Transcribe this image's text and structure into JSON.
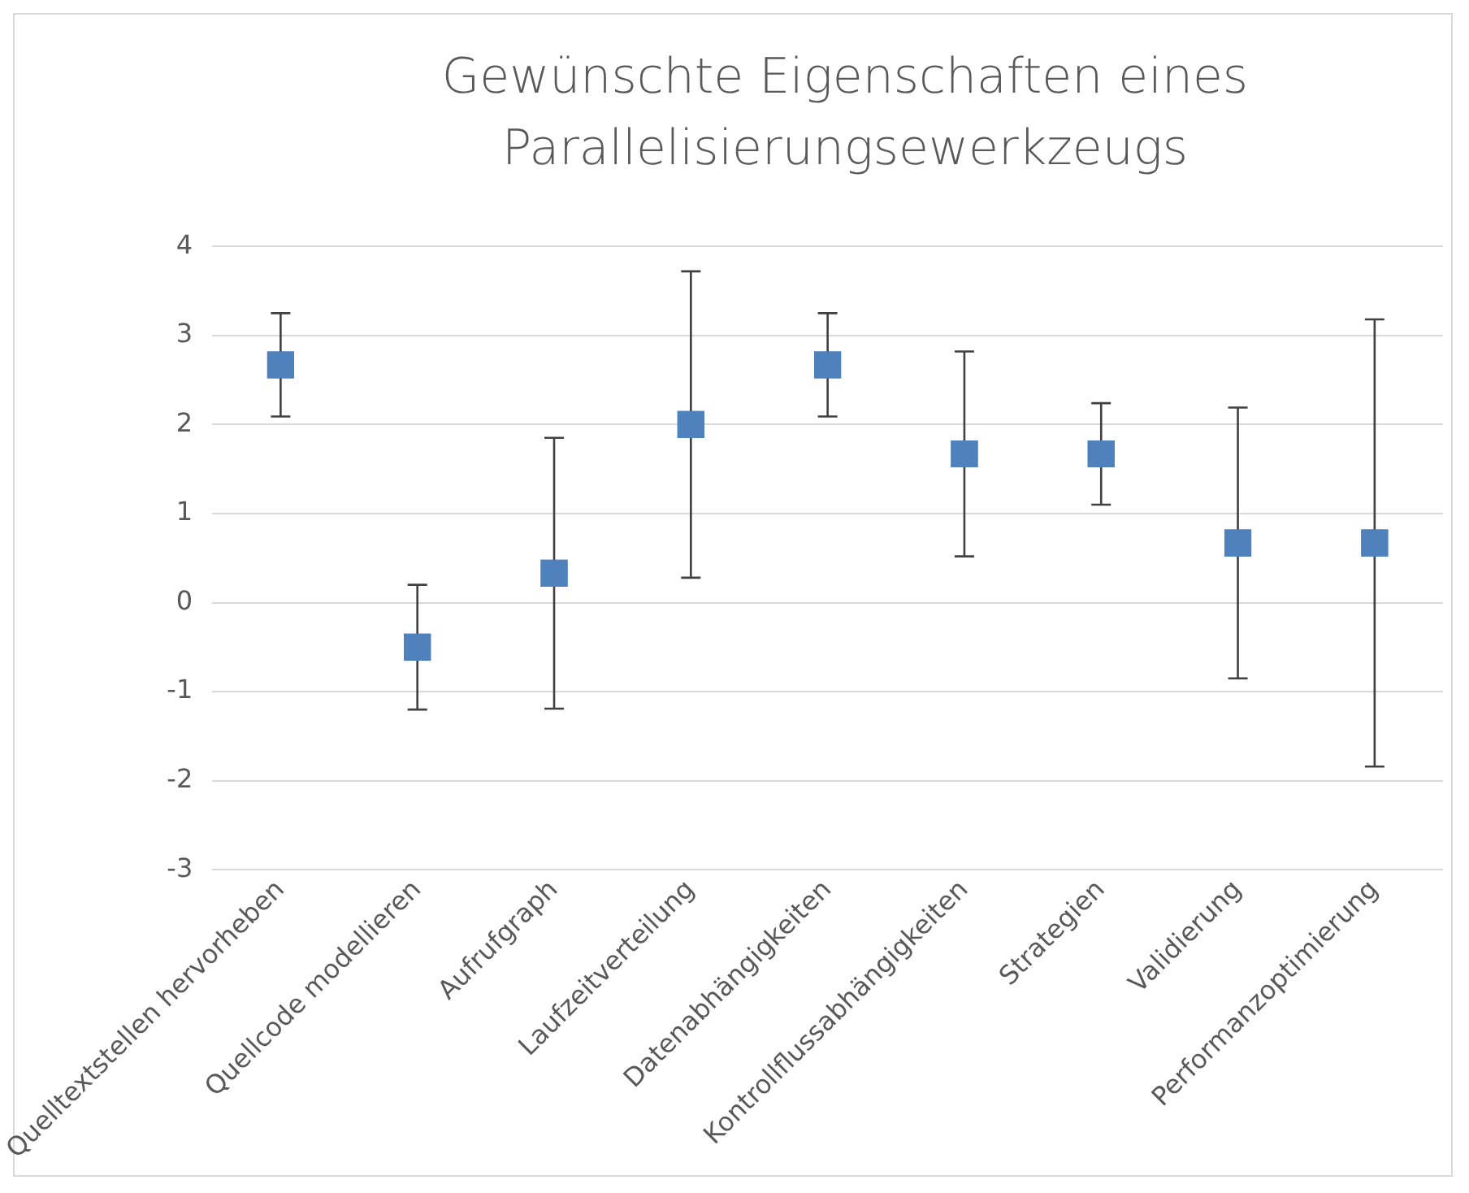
{
  "chart_data": {
    "type": "scatter",
    "title": "Gewünschte Eigenschaften eines Parallelisierungsewerkzeugs",
    "categories": [
      "Quelltextstellen hervorheben",
      "Quellcode modellieren",
      "Aufrufgraph",
      "Laufzeitverteilung",
      "Datenabhängigkeiten",
      "Kontrollflussabhängigkeiten",
      "Strategien",
      "Validierung",
      "Performanzoptimierung"
    ],
    "values": [
      2.67,
      -0.5,
      0.33,
      2.0,
      2.67,
      1.67,
      1.67,
      0.67,
      0.67
    ],
    "errors": [
      0.58,
      0.7,
      1.52,
      1.72,
      0.58,
      1.15,
      0.57,
      1.52,
      2.51
    ],
    "color": "#4f81bd",
    "marker": "square",
    "ylim": [
      -3,
      4
    ],
    "yticks": [
      -3,
      -2,
      -1,
      0,
      1,
      2,
      3,
      4
    ],
    "grid": "y"
  }
}
